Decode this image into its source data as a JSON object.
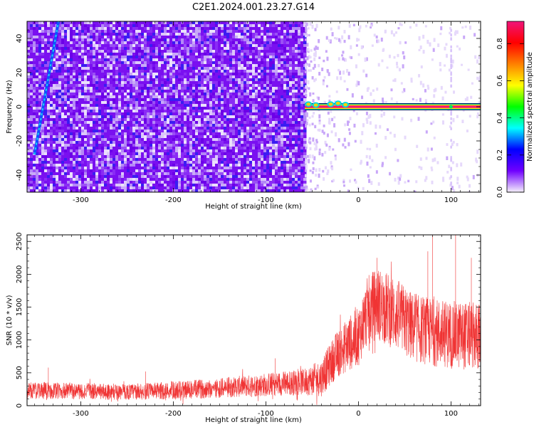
{
  "title": "C2E1.2024.001.23.27.G14",
  "colors": {
    "spectrogram_hot": "#e8147a",
    "snr_line": "#f03434",
    "frame": "#000000"
  },
  "chart_data": [
    {
      "type": "heatmap",
      "title": "C2E1.2024.001.23.27.G14",
      "xlabel": "Height of straight line (km)",
      "ylabel": "Frequency (Hz)",
      "xlim": [
        -358,
        132
      ],
      "ylim": [
        -50,
        50
      ],
      "xticks": [
        -300,
        -200,
        -100,
        0,
        100
      ],
      "yticks": [
        -40,
        -20,
        0,
        20,
        40
      ],
      "colorbar": {
        "label": "Normalized spectral amplitude",
        "range": [
          0,
          0.92
        ],
        "ticks": [
          0.0,
          0.2,
          0.4,
          0.6,
          0.8
        ],
        "colormap": [
          "#f5f0fb",
          "#7000ff",
          "#0000ff",
          "#00ffff",
          "#00ff00",
          "#ffff00",
          "#ff8000",
          "#ff0000",
          "#f0147a"
        ]
      },
      "features": {
        "noise_region_x": [
          -358,
          -58
        ],
        "sparse_region_x": [
          -58,
          132
        ],
        "signal_trace": {
          "x_start": -58,
          "x_end": 132,
          "frequency": 0,
          "width_hz": 3
        },
        "diagonal_streak": {
          "x": [
            -350,
            -324
          ],
          "frequency": [
            -28,
            50
          ]
        }
      }
    },
    {
      "type": "line",
      "xlabel": "Height of straight line (km)",
      "ylabel": "SNR (10 * v/v)",
      "xlim": [
        -358,
        132
      ],
      "ylim": [
        0,
        2600
      ],
      "xticks": [
        -300,
        -200,
        -100,
        0,
        100
      ],
      "yticks": [
        0,
        500,
        1000,
        1500,
        2000,
        2500
      ],
      "envelope": {
        "x": [
          -358,
          -300,
          -250,
          -200,
          -150,
          -100,
          -60,
          -40,
          -25,
          -10,
          0,
          10,
          20,
          40,
          60,
          80,
          100,
          120,
          132
        ],
        "mean": [
          230,
          220,
          210,
          230,
          270,
          320,
          360,
          420,
          750,
          950,
          1050,
          1450,
          1560,
          1400,
          1180,
          1120,
          1080,
          1060,
          1050
        ],
        "spread": [
          130,
          130,
          120,
          140,
          150,
          180,
          200,
          280,
          350,
          420,
          450,
          520,
          560,
          560,
          520,
          520,
          520,
          520,
          520
        ]
      },
      "peak_values": {
        "x": [
          -335,
          -230,
          -90,
          20,
          75,
          80,
          105,
          122
        ],
        "y": [
          580,
          520,
          720,
          2250,
          2350,
          2600,
          2600,
          2250
        ]
      }
    }
  ]
}
